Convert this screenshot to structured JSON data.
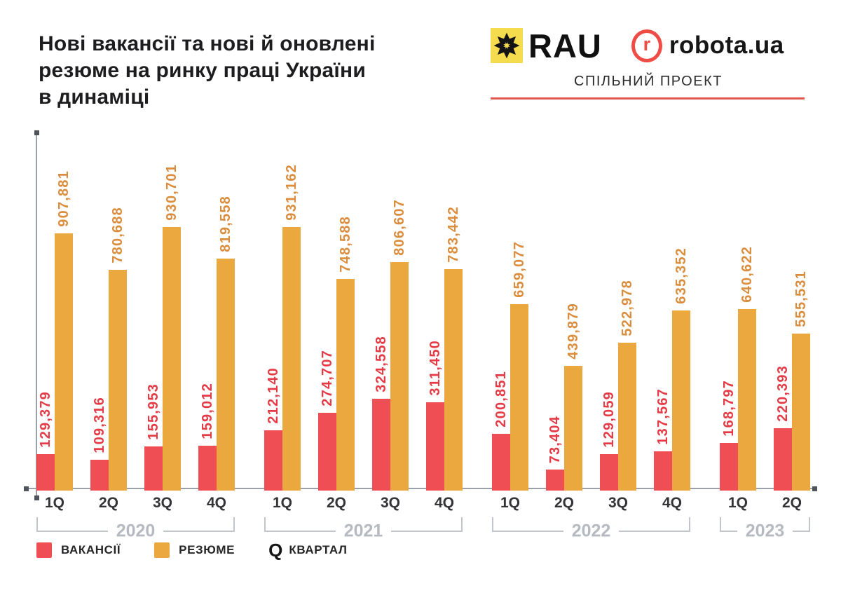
{
  "header": {
    "title": "Нові вакансії та нові й оновлені резюме на ринку праці України в динаміці",
    "title_lines": [
      "Нові вакансії та нові й оновлені",
      "резюме на ринку праці України",
      "в динаміці"
    ],
    "brand": {
      "rau_label": "RAU",
      "robota_icon_letter": "r",
      "robota_label": "robota.ua",
      "subtitle": "СПІЛЬНИЙ ПРОЕКТ"
    }
  },
  "legend": {
    "vacancies_label": "ВАКАНСІЇ",
    "resumes_label": "РЕЗЮМЕ",
    "q_symbol": "Q",
    "quarter_label": "КВАРТАЛ"
  },
  "colors": {
    "vacancies_bar": "#EE4E54",
    "vacancies_label": "#E43B46",
    "resumes_bar": "#EBA83E",
    "resumes_label": "#DB8D3E",
    "rau_yellow": "#F5DC4E",
    "robota_red": "#F04B45",
    "line_red": "#E2574F",
    "axis_gray": "#9CA1A9",
    "bracket_gray": "#C2C6CC",
    "year_gray": "#B5B9C0"
  },
  "chart_data": {
    "type": "bar",
    "title": "Нові вакансії та нові й оновлені резюме на ринку праці України в динаміці",
    "categories": [
      "1Q 2020",
      "2Q 2020",
      "3Q 2020",
      "4Q 2020",
      "1Q 2021",
      "2Q 2021",
      "3Q 2021",
      "4Q 2021",
      "1Q 2022",
      "2Q 2022",
      "3Q 2022",
      "4Q 2022",
      "1Q 2023",
      "2Q 2023"
    ],
    "year_groups": [
      {
        "year": "2020",
        "quarters": [
          "1Q",
          "2Q",
          "3Q",
          "4Q"
        ]
      },
      {
        "year": "2021",
        "quarters": [
          "1Q",
          "2Q",
          "3Q",
          "4Q"
        ]
      },
      {
        "year": "2022",
        "quarters": [
          "1Q",
          "2Q",
          "3Q",
          "4Q"
        ]
      },
      {
        "year": "2023",
        "quarters": [
          "1Q",
          "2Q"
        ]
      }
    ],
    "series": [
      {
        "name": "ВАКАНСІЇ",
        "values": [
          129379,
          109316,
          155953,
          159012,
          212140,
          274707,
          324558,
          311450,
          200851,
          73404,
          129059,
          137567,
          168797,
          220393
        ]
      },
      {
        "name": "РЕЗЮМЕ",
        "values": [
          907881,
          780688,
          930701,
          819558,
          931162,
          748588,
          806607,
          783442,
          659077,
          439879,
          522978,
          635352,
          640622,
          555531
        ]
      }
    ],
    "ylim": [
      0,
      931162
    ],
    "grid": false,
    "legend_position": "bottom",
    "value_labels": "rotated 90deg, thousands separated by commas",
    "xlabel": "",
    "ylabel": ""
  }
}
